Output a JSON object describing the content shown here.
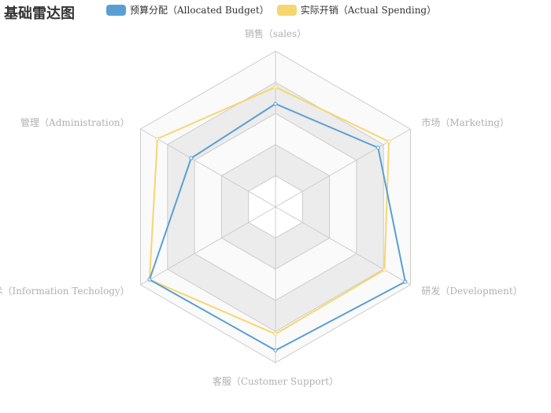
{
  "chart_data": {
    "type": "radar",
    "title": "基础雷达图",
    "indicators": [
      {
        "name": "销售（sales）",
        "max": 6500
      },
      {
        "name": "管理（Administration）",
        "max": 16000
      },
      {
        "name": "信息技术（Information Techology）",
        "max": 30000
      },
      {
        "name": "客服（Customer Support）",
        "max": 38000
      },
      {
        "name": "研发（Development）",
        "max": 52000
      },
      {
        "name": "市场（Marketing）",
        "max": 25000
      }
    ],
    "series": [
      {
        "name": "预算分配（Allocated Budget）",
        "color": "#5a9fd4",
        "values": [
          4300,
          10000,
          28000,
          35000,
          50000,
          19000
        ]
      },
      {
        "name": "实际开销（Actual Spending）",
        "color": "#f6d66f",
        "values": [
          5000,
          14000,
          28000,
          31000,
          42000,
          21000
        ]
      }
    ]
  }
}
